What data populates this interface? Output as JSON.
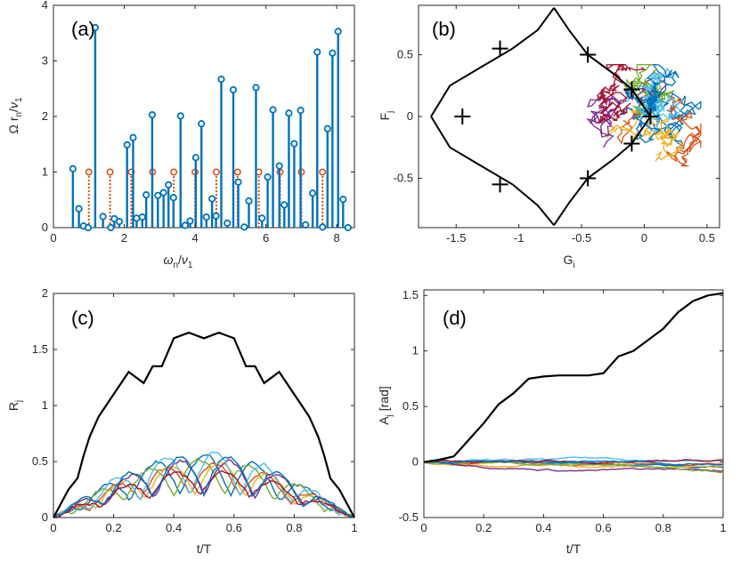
{
  "chart_data": [
    {
      "type": "stem",
      "panel_label": "(a)",
      "xlabel": "ω_n/ν_1",
      "ylabel": "Ω r_n/ν_1",
      "xlim": [
        0,
        8.5
      ],
      "ylim": [
        0,
        4
      ],
      "xticks": [
        "0",
        "2",
        "4",
        "6",
        "8"
      ],
      "yticks": [
        "0",
        "1",
        "2",
        "3",
        "4"
      ],
      "colors": {
        "main": "#0072BD",
        "secondary": "#D95319"
      },
      "series": [
        {
          "name": "r_n",
          "style": "solid stem",
          "x": [
            0.55,
            0.72,
            0.85,
            0.98,
            1.18,
            1.4,
            1.62,
            1.72,
            1.86,
            2.08,
            2.25,
            2.35,
            2.51,
            2.62,
            2.79,
            2.95,
            3.11,
            3.25,
            3.39,
            3.59,
            3.72,
            3.86,
            4.02,
            4.18,
            4.32,
            4.48,
            4.59,
            4.74,
            4.91,
            5.08,
            5.22,
            5.39,
            5.52,
            5.72,
            5.89,
            6.05,
            6.2,
            6.38,
            6.52,
            6.65,
            6.8,
            6.98,
            7.12,
            7.32,
            7.45,
            7.6,
            7.74,
            7.88,
            8.04,
            8.18,
            8.32
          ],
          "values": [
            1.06,
            0.34,
            0.03,
            0.0,
            3.6,
            0.2,
            0.0,
            0.16,
            0.11,
            1.49,
            1.62,
            0.17,
            0.19,
            0.59,
            2.03,
            0.58,
            0.63,
            0.77,
            0.54,
            2.01,
            0.04,
            0.12,
            1.26,
            1.87,
            0.19,
            0.52,
            0.21,
            2.67,
            0.08,
            2.48,
            0.82,
            0.01,
            0.48,
            2.52,
            0.17,
            0.91,
            2.12,
            1.11,
            0.41,
            2.06,
            1.51,
            2.11,
            0.05,
            0.62,
            3.16,
            0.01,
            1.78,
            3.14,
            3.53,
            0.51,
            0.0
          ]
        },
        {
          "name": "reference",
          "style": "dotted stem",
          "x": [
            1.0,
            1.6,
            2.2,
            2.8,
            3.4,
            4.0,
            4.6,
            5.2,
            5.8,
            6.4,
            7.0,
            7.6
          ],
          "values": [
            1,
            1,
            1,
            1,
            1,
            1,
            1,
            1,
            1,
            1,
            1,
            1
          ]
        }
      ]
    },
    {
      "type": "line",
      "panel_label": "(b)",
      "xlabel": "G_i",
      "ylabel": "F_j",
      "xlim": [
        -1.8,
        0.6
      ],
      "ylim": [
        -0.9,
        0.9
      ],
      "xticks": [
        "-1.5",
        "-1",
        "-0.5",
        "0",
        "0.5"
      ],
      "yticks": [
        "-0.5",
        "0",
        "0.5"
      ],
      "description_series": [
        {
          "name": "black trajectory",
          "color": "#000000"
        },
        {
          "name": "colored trajectories",
          "count": 8
        }
      ]
    },
    {
      "type": "line",
      "panel_label": "(c)",
      "xlabel": "t/T",
      "ylabel": "R_j",
      "xlim": [
        0,
        1
      ],
      "ylim": [
        0,
        2
      ],
      "xticks": [
        "0",
        "0.2",
        "0.4",
        "0.6",
        "0.8",
        "1"
      ],
      "yticks": [
        "0",
        "0.5",
        "1",
        "1.5",
        "2"
      ],
      "black_series": {
        "t": [
          0,
          0.02,
          0.05,
          0.08,
          0.1,
          0.12,
          0.15,
          0.2,
          0.25,
          0.3,
          0.33,
          0.36,
          0.4,
          0.45,
          0.5,
          0.55,
          0.6,
          0.64,
          0.67,
          0.7,
          0.75,
          0.8,
          0.85,
          0.88,
          0.9,
          0.92,
          0.95,
          0.98,
          1.0
        ],
        "values": [
          0.0,
          0.1,
          0.25,
          0.35,
          0.55,
          0.72,
          0.9,
          1.1,
          1.3,
          1.2,
          1.35,
          1.35,
          1.6,
          1.65,
          1.6,
          1.65,
          1.6,
          1.35,
          1.35,
          1.2,
          1.3,
          1.1,
          0.9,
          0.72,
          0.55,
          0.35,
          0.25,
          0.1,
          0.0
        ]
      },
      "colored_series_count": 8
    },
    {
      "type": "line",
      "panel_label": "(d)",
      "xlabel": "t/T",
      "ylabel": "A_j [rad]",
      "xlim": [
        0,
        1
      ],
      "ylim": [
        -0.5,
        1.55
      ],
      "xticks": [
        "0",
        "0.2",
        "0.4",
        "0.6",
        "0.8",
        "1"
      ],
      "yticks": [
        "-0.5",
        "0",
        "0.5",
        "1",
        "1.5"
      ],
      "black_series": {
        "t": [
          0,
          0.05,
          0.1,
          0.15,
          0.2,
          0.25,
          0.3,
          0.35,
          0.4,
          0.45,
          0.5,
          0.55,
          0.6,
          0.65,
          0.7,
          0.75,
          0.8,
          0.85,
          0.9,
          0.95,
          1.0
        ],
        "values": [
          0.0,
          0.02,
          0.05,
          0.2,
          0.35,
          0.52,
          0.62,
          0.75,
          0.77,
          0.78,
          0.78,
          0.78,
          0.8,
          0.95,
          1.0,
          1.1,
          1.2,
          1.35,
          1.45,
          1.5,
          1.52
        ]
      },
      "colored_series_count": 8
    }
  ]
}
